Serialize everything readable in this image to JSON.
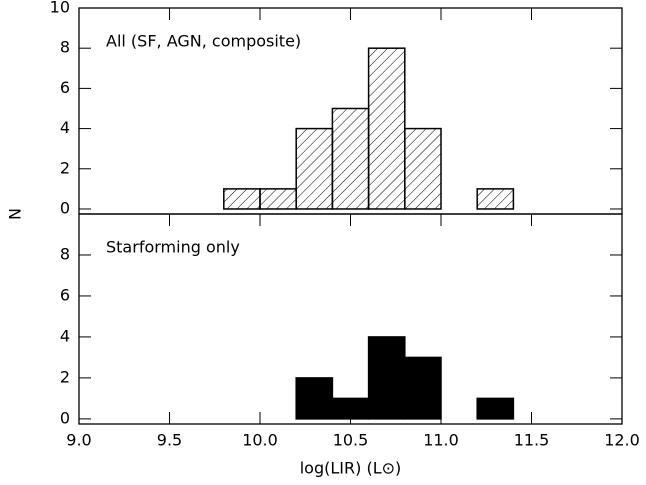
{
  "chart_data": [
    {
      "type": "histogram",
      "annotation": "All (SF, AGN, composite)",
      "bins": [
        9.6,
        9.8,
        10.0,
        10.2,
        10.4,
        10.6,
        10.8,
        11.0,
        11.2,
        11.4,
        11.6
      ],
      "values": [
        0,
        1,
        1,
        4,
        5,
        8,
        4,
        0,
        1,
        0
      ],
      "fill": "hatch",
      "color": "#000000",
      "xlim": [
        9.0,
        12.0
      ],
      "ylim": [
        -0.25,
        10
      ],
      "yticks": [
        0,
        2,
        4,
        6,
        8,
        10
      ]
    },
    {
      "type": "histogram",
      "annotation": "Starforming only",
      "ylabel": "N",
      "xlabel": "log(LIR) (L⊙)",
      "bins": [
        9.6,
        9.8,
        10.0,
        10.2,
        10.4,
        10.6,
        10.8,
        11.0,
        11.2,
        11.4,
        11.6
      ],
      "values": [
        0,
        0,
        0,
        2,
        1,
        4,
        3,
        0,
        1,
        0
      ],
      "fill": "solid",
      "color": "#000000",
      "xlim": [
        9.0,
        12.0
      ],
      "ylim": [
        -0.25,
        10
      ],
      "yticks": [
        0,
        2,
        4,
        6,
        8
      ],
      "xticks": [
        {
          "value": 9,
          "label": "9.0"
        },
        9.5,
        {
          "value": 10,
          "label": "10.0"
        },
        10.5,
        {
          "value": 11,
          "label": "11.0"
        },
        11.5,
        {
          "value": 12,
          "label": "12.0"
        }
      ]
    }
  ]
}
